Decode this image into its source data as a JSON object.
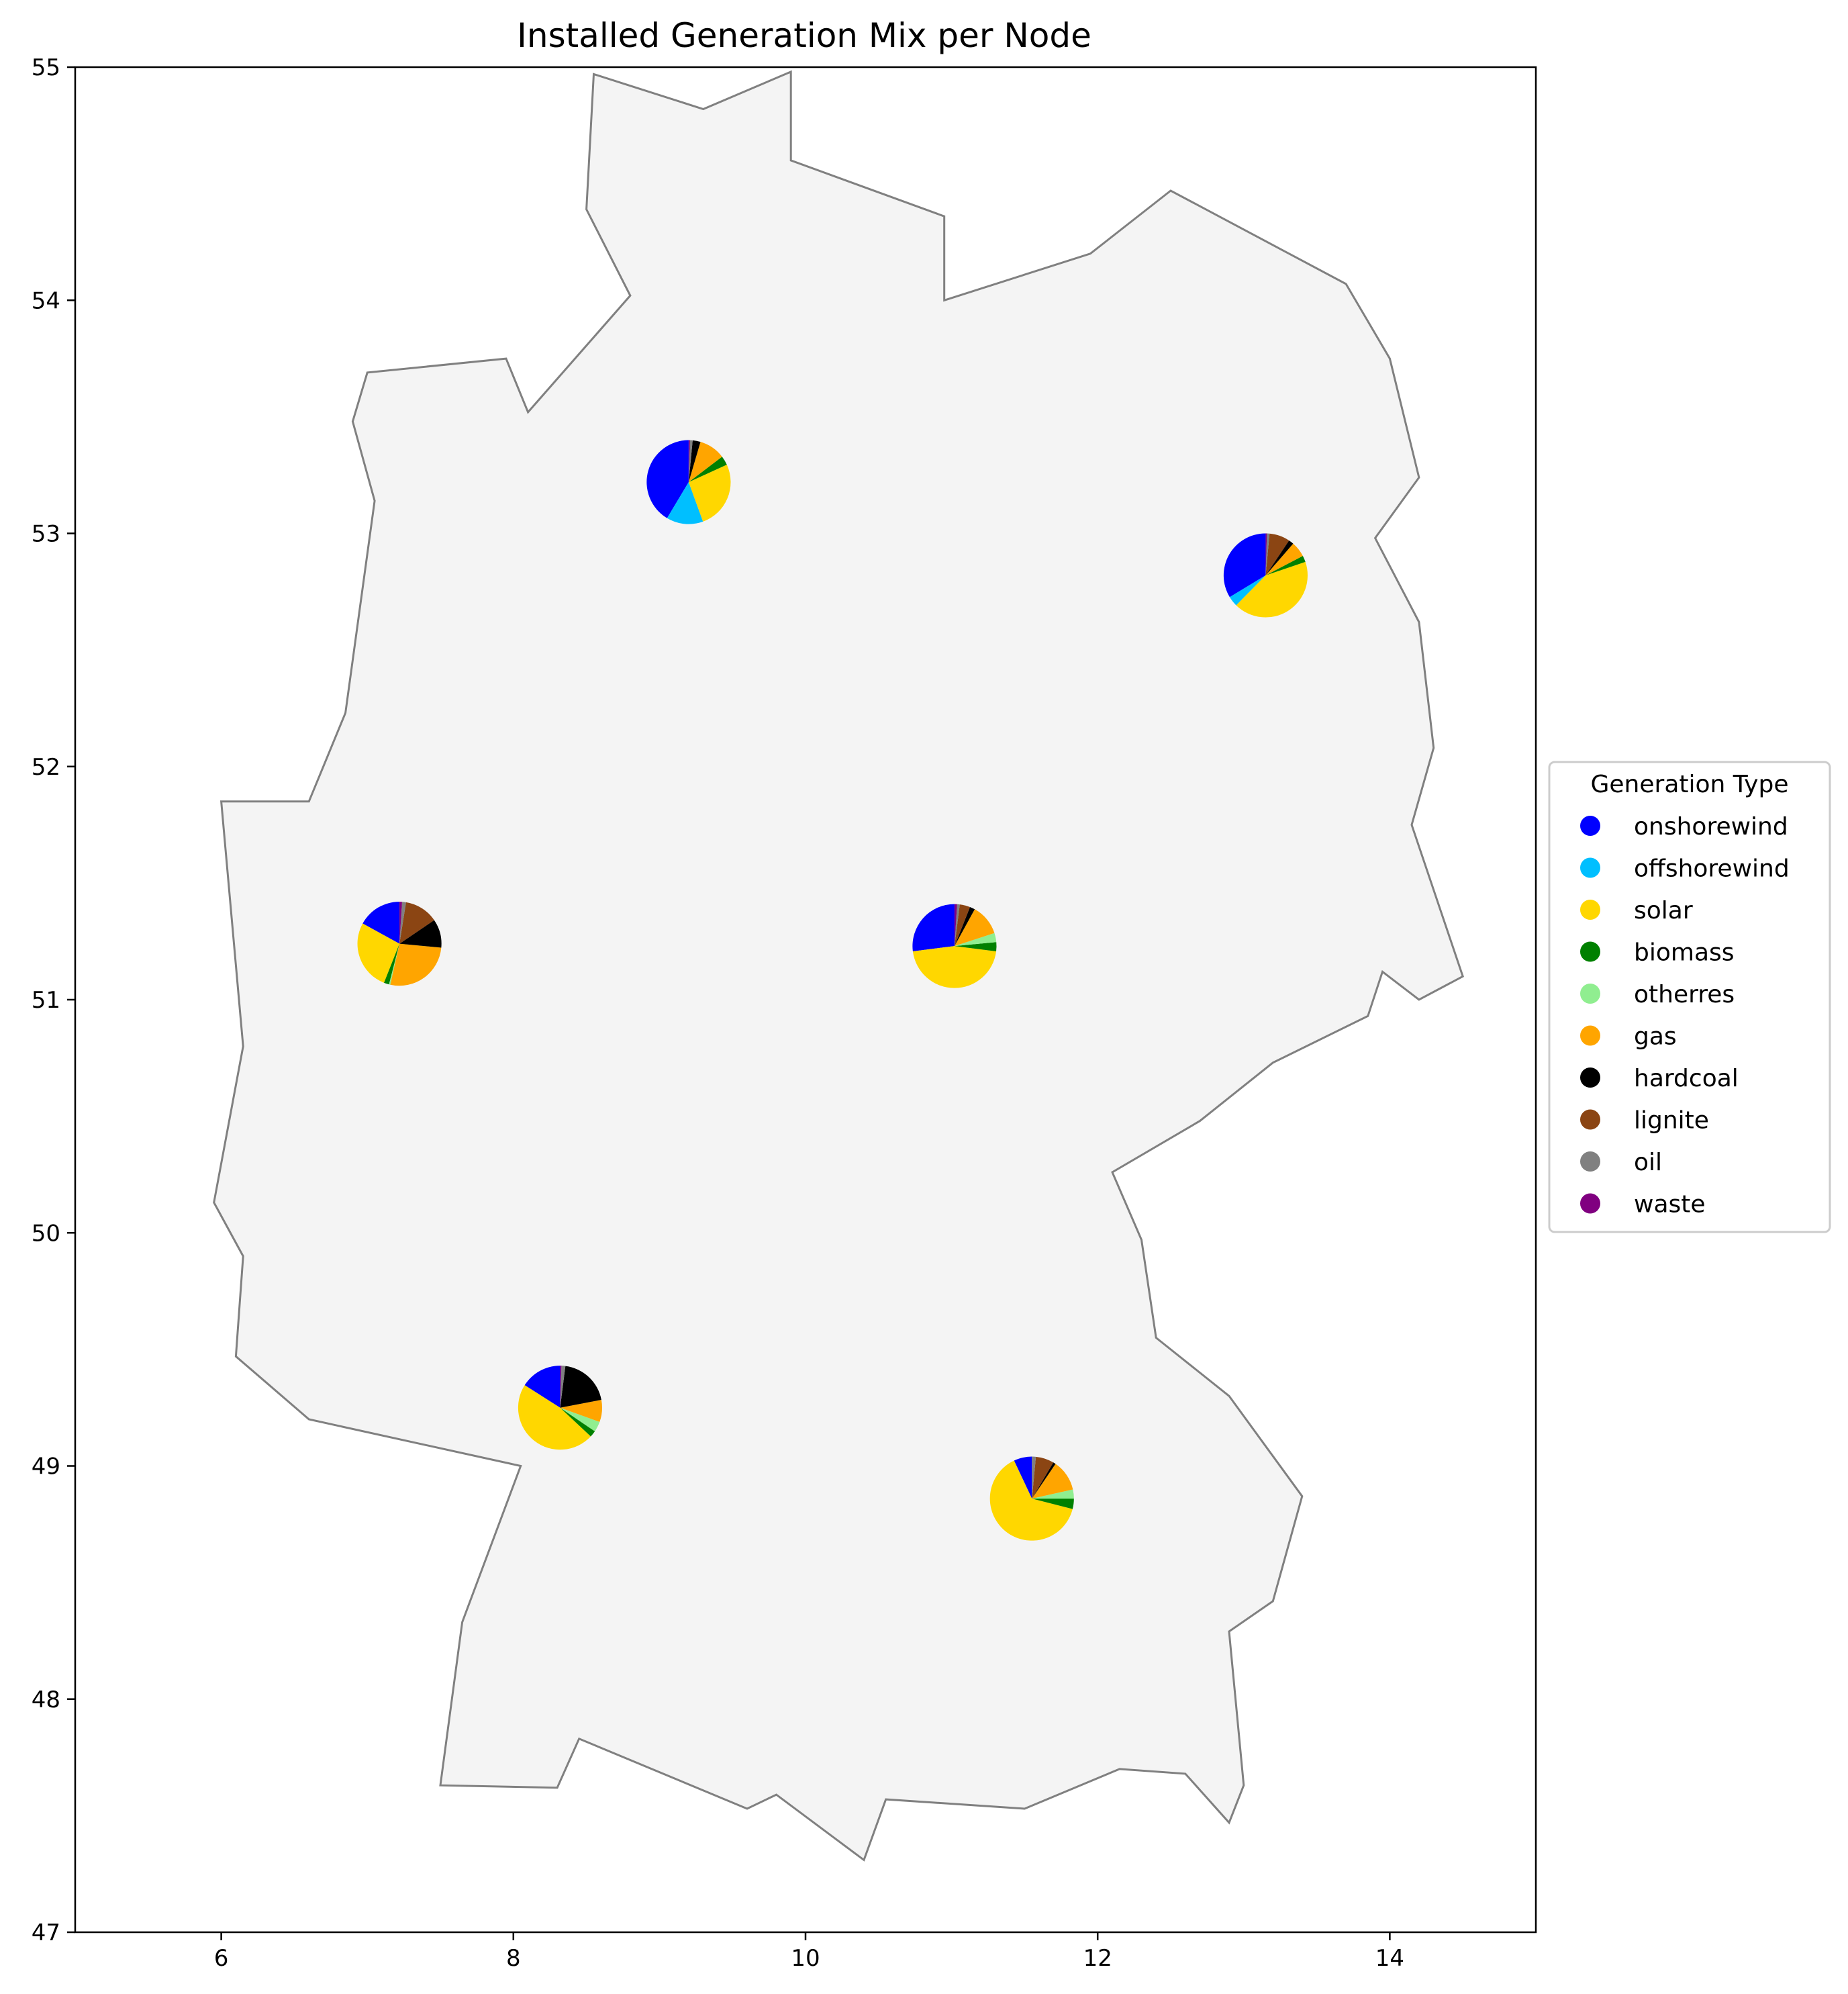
{
  "chart_data": {
    "type": "pie",
    "title": "Installed Generation Mix per Node",
    "xlim": [
      5,
      15
    ],
    "ylim": [
      47,
      55
    ],
    "x_ticks": [
      6,
      8,
      10,
      12,
      14
    ],
    "y_ticks": [
      47,
      48,
      49,
      50,
      51,
      52,
      53,
      54,
      55
    ],
    "grid": false,
    "legend": {
      "title": "Generation Type",
      "placement": "center-right outside",
      "entries": [
        {
          "name": "onshorewind",
          "color": "#0000ff"
        },
        {
          "name": "offshorewind",
          "color": "#00bfff"
        },
        {
          "name": "solar",
          "color": "#ffd700"
        },
        {
          "name": "biomass",
          "color": "#008000"
        },
        {
          "name": "otherres",
          "color": "#90ee90"
        },
        {
          "name": "gas",
          "color": "#ffa500"
        },
        {
          "name": "hardcoal",
          "color": "#000000"
        },
        {
          "name": "lignite",
          "color": "#8b4513"
        },
        {
          "name": "oil",
          "color": "#808080"
        },
        {
          "name": "waste",
          "color": "#800080"
        }
      ]
    },
    "region_outline": [
      [
        8.55,
        54.97
      ],
      [
        9.3,
        54.82
      ],
      [
        9.9,
        54.98
      ],
      [
        9.9,
        54.6
      ],
      [
        10.95,
        54.36
      ],
      [
        10.95,
        54.0
      ],
      [
        11.95,
        54.2
      ],
      [
        12.5,
        54.47
      ],
      [
        13.7,
        54.07
      ],
      [
        14.0,
        53.75
      ],
      [
        14.2,
        53.24
      ],
      [
        13.9,
        52.98
      ],
      [
        14.2,
        52.62
      ],
      [
        14.3,
        52.08
      ],
      [
        14.15,
        51.75
      ],
      [
        14.5,
        51.1
      ],
      [
        14.2,
        51.0
      ],
      [
        13.95,
        51.12
      ],
      [
        13.85,
        50.93
      ],
      [
        13.2,
        50.73
      ],
      [
        12.7,
        50.48
      ],
      [
        12.1,
        50.26
      ],
      [
        12.3,
        49.97
      ],
      [
        12.4,
        49.55
      ],
      [
        12.9,
        49.3
      ],
      [
        13.4,
        48.87
      ],
      [
        13.2,
        48.42
      ],
      [
        12.9,
        48.29
      ],
      [
        13.0,
        47.63
      ],
      [
        12.9,
        47.47
      ],
      [
        12.6,
        47.68
      ],
      [
        12.15,
        47.7
      ],
      [
        11.5,
        47.53
      ],
      [
        10.55,
        47.57
      ],
      [
        10.4,
        47.31
      ],
      [
        9.8,
        47.59
      ],
      [
        9.6,
        47.53
      ],
      [
        8.45,
        47.83
      ],
      [
        8.3,
        47.62
      ],
      [
        7.5,
        47.63
      ],
      [
        7.65,
        48.33
      ],
      [
        8.05,
        49.0
      ],
      [
        6.6,
        49.2
      ],
      [
        6.1,
        49.47
      ],
      [
        6.15,
        49.9
      ],
      [
        5.95,
        50.13
      ],
      [
        6.15,
        50.8
      ],
      [
        6.0,
        51.85
      ],
      [
        6.6,
        51.85
      ],
      [
        6.85,
        52.23
      ],
      [
        7.05,
        53.14
      ],
      [
        6.9,
        53.48
      ],
      [
        7.0,
        53.69
      ],
      [
        7.95,
        53.75
      ],
      [
        8.1,
        53.52
      ],
      [
        8.8,
        54.02
      ],
      [
        8.5,
        54.39
      ]
    ],
    "nodes": [
      {
        "lon": 9.2,
        "lat": 53.22,
        "size": 0.92,
        "shares": {
          "onshorewind": 41,
          "offshorewind": 14,
          "solar": 26,
          "biomass": 3.5,
          "otherres": 0,
          "gas": 10,
          "hardcoal": 3,
          "lignite": 0,
          "oil": 1,
          "waste": 0.5
        }
      },
      {
        "lon": 13.15,
        "lat": 52.82,
        "size": 0.92,
        "shares": {
          "onshorewind": 34,
          "offshorewind": 4,
          "solar": 43,
          "biomass": 2.5,
          "otherres": 0,
          "gas": 6,
          "hardcoal": 2,
          "lignite": 8,
          "oil": 1,
          "waste": 0.5
        }
      },
      {
        "lon": 7.22,
        "lat": 51.24,
        "size": 0.92,
        "shares": {
          "onshorewind": 17,
          "offshorewind": 0,
          "solar": 27,
          "biomass": 2,
          "otherres": 0.5,
          "gas": 27,
          "hardcoal": 11,
          "lignite": 13,
          "oil": 1.5,
          "waste": 1
        }
      },
      {
        "lon": 11.02,
        "lat": 51.23,
        "size": 0.92,
        "shares": {
          "onshorewind": 27,
          "offshorewind": 0,
          "solar": 46,
          "biomass": 3.5,
          "otherres": 3.5,
          "gas": 12,
          "hardcoal": 2,
          "lignite": 4,
          "oil": 1,
          "waste": 1
        }
      },
      {
        "lon": 8.32,
        "lat": 49.25,
        "size": 0.92,
        "shares": {
          "onshorewind": 16,
          "offshorewind": 0,
          "solar": 47,
          "biomass": 2.5,
          "otherres": 4,
          "gas": 8.5,
          "hardcoal": 20,
          "lignite": 0,
          "oil": 1.5,
          "waste": 0.5
        }
      },
      {
        "lon": 11.55,
        "lat": 48.86,
        "size": 0.92,
        "shares": {
          "onshorewind": 7,
          "offshorewind": 0,
          "solar": 64,
          "biomass": 4,
          "otherres": 3.5,
          "gas": 12,
          "hardcoal": 1,
          "lignite": 7,
          "oil": 1.5,
          "waste": 0
        }
      }
    ]
  }
}
